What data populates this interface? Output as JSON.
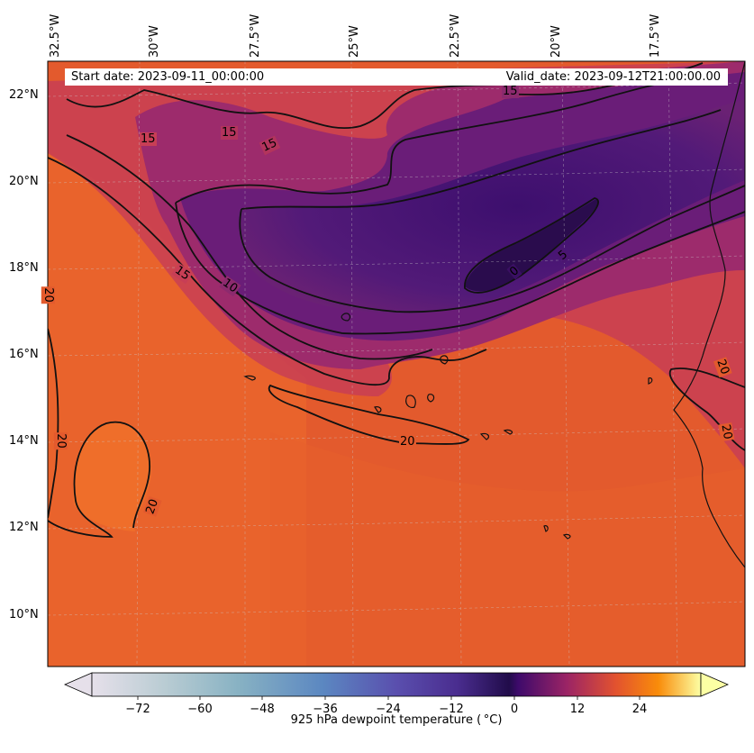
{
  "info": {
    "start_label": "Start date: 2023-09-11_00:00:00",
    "valid_label": "Valid_date: 2023-09-12T21:00:00.00"
  },
  "axes": {
    "longitudes": [
      "32.5°W",
      "30°W",
      "27.5°W",
      "25°W",
      "22.5°W",
      "20°W",
      "17.5°W"
    ],
    "latitudes": [
      "22°N",
      "20°N",
      "18°N",
      "16°N",
      "14°N",
      "12°N",
      "10°N"
    ]
  },
  "contours": {
    "levels": [
      0,
      5,
      10,
      15,
      20
    ],
    "labels": [
      "15",
      "15",
      "15",
      "15",
      "15",
      "10",
      "5",
      "0",
      "20",
      "20",
      "20",
      "20",
      "20",
      "20"
    ]
  },
  "colorbar": {
    "title": "925 hPa dewpoint temperature ($^\\circ$C)",
    "display_title": "925 hPa dewpoint temperature ( °C)",
    "ticks": [
      "−72",
      "−60",
      "−48",
      "−36",
      "−24",
      "−12",
      "0",
      "12",
      "24"
    ],
    "colormap": "inferno",
    "extend": "both"
  },
  "colors": {
    "warm_field": "#e35a2d",
    "moist_field": "#f07a2b",
    "dry_core": "#3b0f6f",
    "contour_line": "#111111"
  }
}
